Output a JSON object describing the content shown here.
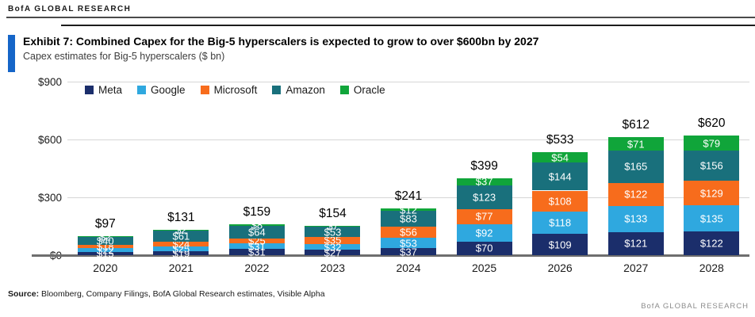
{
  "header": {
    "brand": "BofA GLOBAL RESEARCH"
  },
  "exhibit": {
    "title": "Exhibit 7: Combined Capex for the Big-5 hyperscalers is expected to grow to over $600bn by 2027",
    "subtitle": "Capex estimates for Big-5 hyperscalers ($ bn)",
    "accent_color": "#1565c8"
  },
  "chart_data": {
    "type": "bar",
    "stacked": true,
    "title": "Capex estimates for Big-5 hyperscalers ($ bn)",
    "categories": [
      "2020",
      "2021",
      "2022",
      "2023",
      "2024",
      "2025",
      "2026",
      "2027",
      "2028"
    ],
    "series": [
      {
        "name": "Meta",
        "color": "#1b2e6b",
        "values": [
          15,
          19,
          31,
          27,
          37,
          70,
          109,
          121,
          122
        ]
      },
      {
        "name": "Google",
        "color": "#2fa8df",
        "values": [
          22,
          25,
          31,
          32,
          53,
          92,
          118,
          133,
          135
        ]
      },
      {
        "name": "Microsoft",
        "color": "#f76c1c",
        "values": [
          18,
          24,
          25,
          35,
          56,
          77,
          108,
          122,
          129
        ]
      },
      {
        "name": "Amazon",
        "color": "#19707c",
        "values": [
          40,
          61,
          64,
          53,
          83,
          123,
          144,
          165,
          156
        ]
      },
      {
        "name": "Oracle",
        "color": "#10a53a",
        "values": [
          2,
          2,
          8,
          7,
          12,
          37,
          54,
          71,
          79
        ]
      }
    ],
    "totals": [
      "$97",
      "$131",
      "$159",
      "$154",
      "$241",
      "$399",
      "$533",
      "$612",
      "$620"
    ],
    "y_ticks": [
      "$900",
      "$600",
      "$300",
      "$0"
    ],
    "ylim": [
      0,
      900
    ],
    "grid": true,
    "legend_position": "top-left"
  },
  "footer": {
    "source_label": "Source:",
    "source_text": " Bloomberg, Company Filings, BofA Global Research estimates, Visible Alpha",
    "brand": "BofA GLOBAL RESEARCH"
  }
}
